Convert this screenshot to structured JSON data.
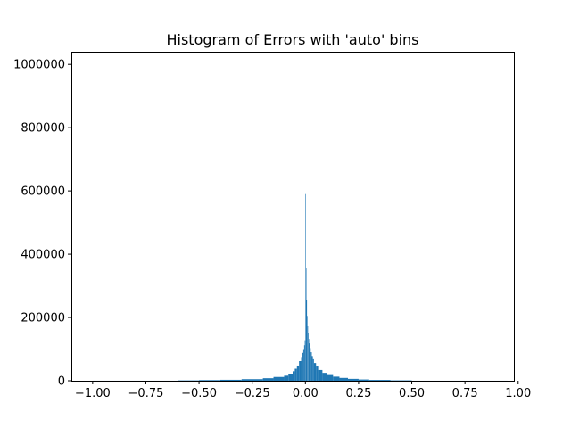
{
  "chart_data": {
    "type": "bar",
    "title": "Histogram of Errors with 'auto' bins",
    "xlabel": "",
    "ylabel": "",
    "xlim": [
      -1.1,
      0.98
    ],
    "ylim": [
      0,
      1040000
    ],
    "x_ticks": [
      {
        "value": -1.0,
        "label": "−1.00"
      },
      {
        "value": -0.75,
        "label": "−0.75"
      },
      {
        "value": -0.5,
        "label": "−0.50"
      },
      {
        "value": -0.25,
        "label": "−0.25"
      },
      {
        "value": 0.0,
        "label": "0.00"
      },
      {
        "value": 0.25,
        "label": "0.25"
      },
      {
        "value": 0.5,
        "label": "0.50"
      },
      {
        "value": 0.75,
        "label": "0.75"
      },
      {
        "value": 1.0,
        "label": "1.00"
      }
    ],
    "y_ticks": [
      {
        "value": 0,
        "label": "0"
      },
      {
        "value": 200000,
        "label": "200000"
      },
      {
        "value": 400000,
        "label": "400000"
      },
      {
        "value": 600000,
        "label": "600000"
      },
      {
        "value": 800000,
        "label": "800000"
      },
      {
        "value": 1000000,
        "label": "1000000"
      }
    ],
    "grid": false,
    "color": "#1f77b4",
    "bins": [
      {
        "x0": -1.0,
        "x1": -0.6,
        "count": 100
      },
      {
        "x0": -0.6,
        "x1": -0.5,
        "count": 1000
      },
      {
        "x0": -0.5,
        "x1": -0.4,
        "count": 2000
      },
      {
        "x0": -0.4,
        "x1": -0.3,
        "count": 3000
      },
      {
        "x0": -0.3,
        "x1": -0.2,
        "count": 5000
      },
      {
        "x0": -0.2,
        "x1": -0.15,
        "count": 8000
      },
      {
        "x0": -0.15,
        "x1": -0.1,
        "count": 12000
      },
      {
        "x0": -0.1,
        "x1": -0.08,
        "count": 16000
      },
      {
        "x0": -0.08,
        "x1": -0.06,
        "count": 22000
      },
      {
        "x0": -0.06,
        "x1": -0.05,
        "count": 30000
      },
      {
        "x0": -0.05,
        "x1": -0.04,
        "count": 38000
      },
      {
        "x0": -0.04,
        "x1": -0.03,
        "count": 48000
      },
      {
        "x0": -0.03,
        "x1": -0.02,
        "count": 62000
      },
      {
        "x0": -0.02,
        "x1": -0.015,
        "count": 75000
      },
      {
        "x0": -0.015,
        "x1": -0.01,
        "count": 88000
      },
      {
        "x0": -0.01,
        "x1": -0.006,
        "count": 100000
      },
      {
        "x0": -0.006,
        "x1": -0.003,
        "count": 112000
      },
      {
        "x0": -0.003,
        "x1": 0.0,
        "count": 128000
      },
      {
        "x0": 0.0,
        "x1": 0.0025,
        "count": 590000
      },
      {
        "x0": 0.0025,
        "x1": 0.005,
        "count": 355000
      },
      {
        "x0": 0.005,
        "x1": 0.0075,
        "count": 255000
      },
      {
        "x0": 0.0075,
        "x1": 0.01,
        "count": 205000
      },
      {
        "x0": 0.01,
        "x1": 0.0125,
        "count": 172000
      },
      {
        "x0": 0.0125,
        "x1": 0.015,
        "count": 150000
      },
      {
        "x0": 0.015,
        "x1": 0.0175,
        "count": 132000
      },
      {
        "x0": 0.0175,
        "x1": 0.02,
        "count": 118000
      },
      {
        "x0": 0.02,
        "x1": 0.025,
        "count": 103000
      },
      {
        "x0": 0.025,
        "x1": 0.03,
        "count": 90000
      },
      {
        "x0": 0.03,
        "x1": 0.035,
        "count": 78000
      },
      {
        "x0": 0.035,
        "x1": 0.04,
        "count": 68000
      },
      {
        "x0": 0.04,
        "x1": 0.05,
        "count": 56000
      },
      {
        "x0": 0.05,
        "x1": 0.06,
        "count": 45000
      },
      {
        "x0": 0.06,
        "x1": 0.08,
        "count": 34000
      },
      {
        "x0": 0.08,
        "x1": 0.1,
        "count": 25000
      },
      {
        "x0": 0.1,
        "x1": 0.13,
        "count": 18000
      },
      {
        "x0": 0.13,
        "x1": 0.16,
        "count": 13000
      },
      {
        "x0": 0.16,
        "x1": 0.2,
        "count": 9000
      },
      {
        "x0": 0.2,
        "x1": 0.25,
        "count": 6000
      },
      {
        "x0": 0.25,
        "x1": 0.3,
        "count": 4000
      },
      {
        "x0": 0.3,
        "x1": 0.4,
        "count": 2500
      },
      {
        "x0": 0.4,
        "x1": 0.5,
        "count": 1200
      },
      {
        "x0": 0.5,
        "x1": 0.95,
        "count": 100
      }
    ]
  }
}
